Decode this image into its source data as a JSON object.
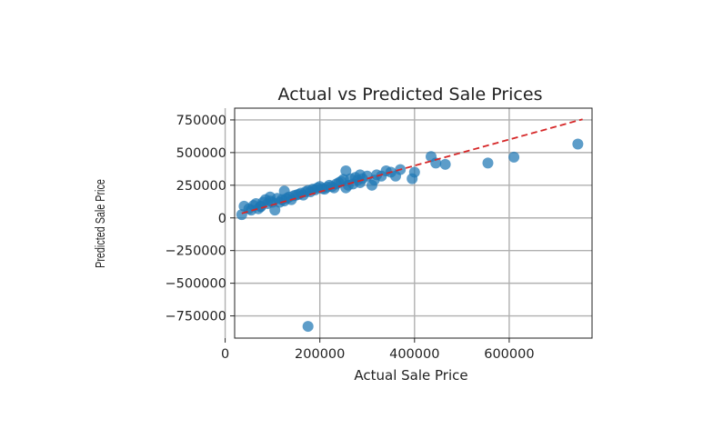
{
  "chart_data": {
    "type": "scatter",
    "title": "Actual vs Predicted Sale Prices",
    "xlabel": "Actual Sale Price",
    "ylabel": "Predicted Sale Price",
    "xlim": [
      20000,
      775000
    ],
    "ylim": [
      -920000,
      840000
    ],
    "xticks": [
      0,
      200000,
      400000,
      600000
    ],
    "xtick_labels": [
      "0",
      "200000",
      "400000",
      "600000"
    ],
    "yticks": [
      750000,
      500000,
      250000,
      0,
      -250000,
      -500000,
      -750000
    ],
    "ytick_labels": [
      "750000",
      "500000",
      "250000",
      "0",
      "−250000",
      "−500000",
      "−750000"
    ],
    "grid": true,
    "colors": {
      "points": "#1f77b4",
      "reference_line": "#d62728"
    },
    "series": [
      {
        "kind": "scatter",
        "x": [
          35000,
          40000,
          50000,
          55000,
          60000,
          65000,
          70000,
          75000,
          80000,
          85000,
          90000,
          95000,
          100000,
          105000,
          110000,
          115000,
          120000,
          125000,
          130000,
          135000,
          140000,
          145000,
          150000,
          155000,
          160000,
          165000,
          170000,
          175000,
          180000,
          185000,
          190000,
          195000,
          200000,
          205000,
          210000,
          215000,
          220000,
          225000,
          230000,
          235000,
          240000,
          245000,
          250000,
          255000,
          260000,
          265000,
          270000,
          275000,
          280000,
          285000,
          290000,
          300000,
          310000,
          315000,
          320000,
          330000,
          340000,
          350000,
          360000,
          370000,
          395000,
          400000,
          435000,
          445000,
          465000,
          555000,
          610000,
          745000,
          175000,
          95000,
          75000,
          125000,
          255000,
          285000
        ],
        "y": [
          25000,
          90000,
          70000,
          60000,
          95000,
          110000,
          70000,
          90000,
          120000,
          140000,
          110000,
          130000,
          120000,
          60000,
          150000,
          120000,
          140000,
          130000,
          150000,
          160000,
          140000,
          170000,
          175000,
          180000,
          190000,
          175000,
          200000,
          210000,
          200000,
          220000,
          215000,
          230000,
          240000,
          225000,
          220000,
          235000,
          250000,
          240000,
          230000,
          260000,
          270000,
          280000,
          295000,
          360000,
          250000,
          300000,
          260000,
          310000,
          290000,
          270000,
          300000,
          320000,
          250000,
          290000,
          330000,
          320000,
          360000,
          350000,
          320000,
          370000,
          300000,
          350000,
          470000,
          420000,
          410000,
          420000,
          465000,
          565000,
          -830000,
          160000,
          85000,
          205000,
          230000,
          330000
        ]
      },
      {
        "kind": "line",
        "style": "dashed",
        "x": [
          35000,
          755000
        ],
        "y": [
          35000,
          755000
        ]
      }
    ]
  }
}
